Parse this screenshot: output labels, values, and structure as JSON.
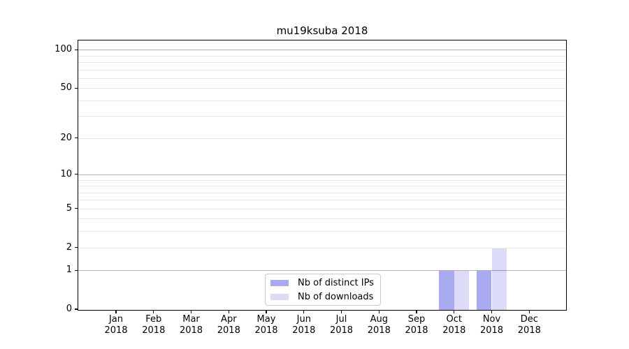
{
  "figure": {
    "title": "mu19ksuba 2018"
  },
  "legend": {
    "items": [
      {
        "label": "Nb of distinct IPs",
        "color": "#aaaaf0"
      },
      {
        "label": "Nb of downloads",
        "color": "#dcdcf8"
      }
    ]
  },
  "chart_data": {
    "type": "bar",
    "title": "mu19ksuba 2018",
    "categories": [
      "Jan 2018",
      "Feb 2018",
      "Mar 2018",
      "Apr 2018",
      "May 2018",
      "Jun 2018",
      "Jul 2018",
      "Aug 2018",
      "Sep 2018",
      "Oct 2018",
      "Nov 2018",
      "Dec 2018"
    ],
    "series": [
      {
        "name": "Nb of distinct IPs",
        "color": "#aaaaf0",
        "values": [
          0,
          0,
          0,
          0,
          0,
          0,
          0,
          0,
          0,
          1,
          1,
          0
        ]
      },
      {
        "name": "Nb of downloads",
        "color": "#dcdcf8",
        "values": [
          0,
          0,
          0,
          0,
          0,
          0,
          0,
          0,
          0,
          1,
          2,
          0
        ]
      }
    ],
    "xlabel": "",
    "ylabel": "",
    "yscale": "symlog (log10 of 1+value)",
    "ylim": [
      0,
      118
    ],
    "grid": true,
    "legend_position": "inside axes, bottom center-left",
    "y_ticks": [
      {
        "value": 100,
        "label": "100"
      },
      {
        "value": 50,
        "label": "50"
      },
      {
        "value": 20,
        "label": "20"
      },
      {
        "value": 10,
        "label": "10"
      },
      {
        "value": 5,
        "label": "5"
      },
      {
        "value": 2,
        "label": "2"
      },
      {
        "value": 1,
        "label": "1"
      },
      {
        "value": 0,
        "label": "0"
      }
    ],
    "major_grid_values": [
      1,
      10,
      100
    ],
    "minor_grid_values": [
      2,
      3,
      4,
      5,
      6,
      7,
      8,
      9,
      20,
      30,
      40,
      50,
      60,
      70,
      80,
      90
    ],
    "colors": {
      "major_grid": "#b0b0b0",
      "minor_grid": "#e9e9e9",
      "spine": "#000000",
      "background": "#ffffff"
    }
  }
}
